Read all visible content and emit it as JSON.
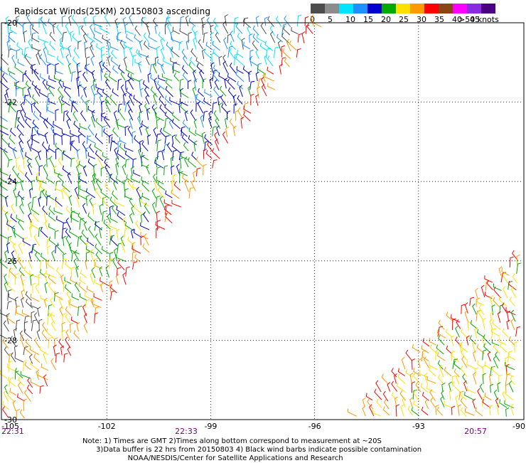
{
  "title": "Rapidscat Winds(25KM) 20150803 ascending",
  "legend": {
    "unit_label": ">50 knots",
    "labels": [
      "0",
      "5",
      "10",
      "15",
      "20",
      "25",
      "30",
      "35",
      "40",
      "45"
    ],
    "colors": [
      "#4d4d4d",
      "#8c8c8c",
      "#00e5ff",
      "#1e90ff",
      "#0000cd",
      "#00aa00",
      "#ffe000",
      "#ff9900",
      "#ff0000",
      "#8b4513",
      "#ff00ff",
      "#8a2be2",
      "#4b0082"
    ]
  },
  "map": {
    "lat_labels": [
      "-20",
      "-22",
      "-24",
      "-26",
      "-28",
      "-30"
    ],
    "lon_labels": [
      "-105",
      "-102",
      "-99",
      "-96",
      "-93",
      "-90"
    ],
    "time_labels": [
      "22:31",
      "22:33",
      "20:57"
    ],
    "contamination_color": "#000000"
  },
  "notes": [
    "Note: 1) Times are GMT 2)Times along bottom correspond to measurement at ~20S",
    "      3)Data buffer is 22 hrs from 20150803 4) Black wind barbs indicate possible contamination",
    "                    NOAA/NESDIS/Center for Satellite Applications and Research"
  ]
}
